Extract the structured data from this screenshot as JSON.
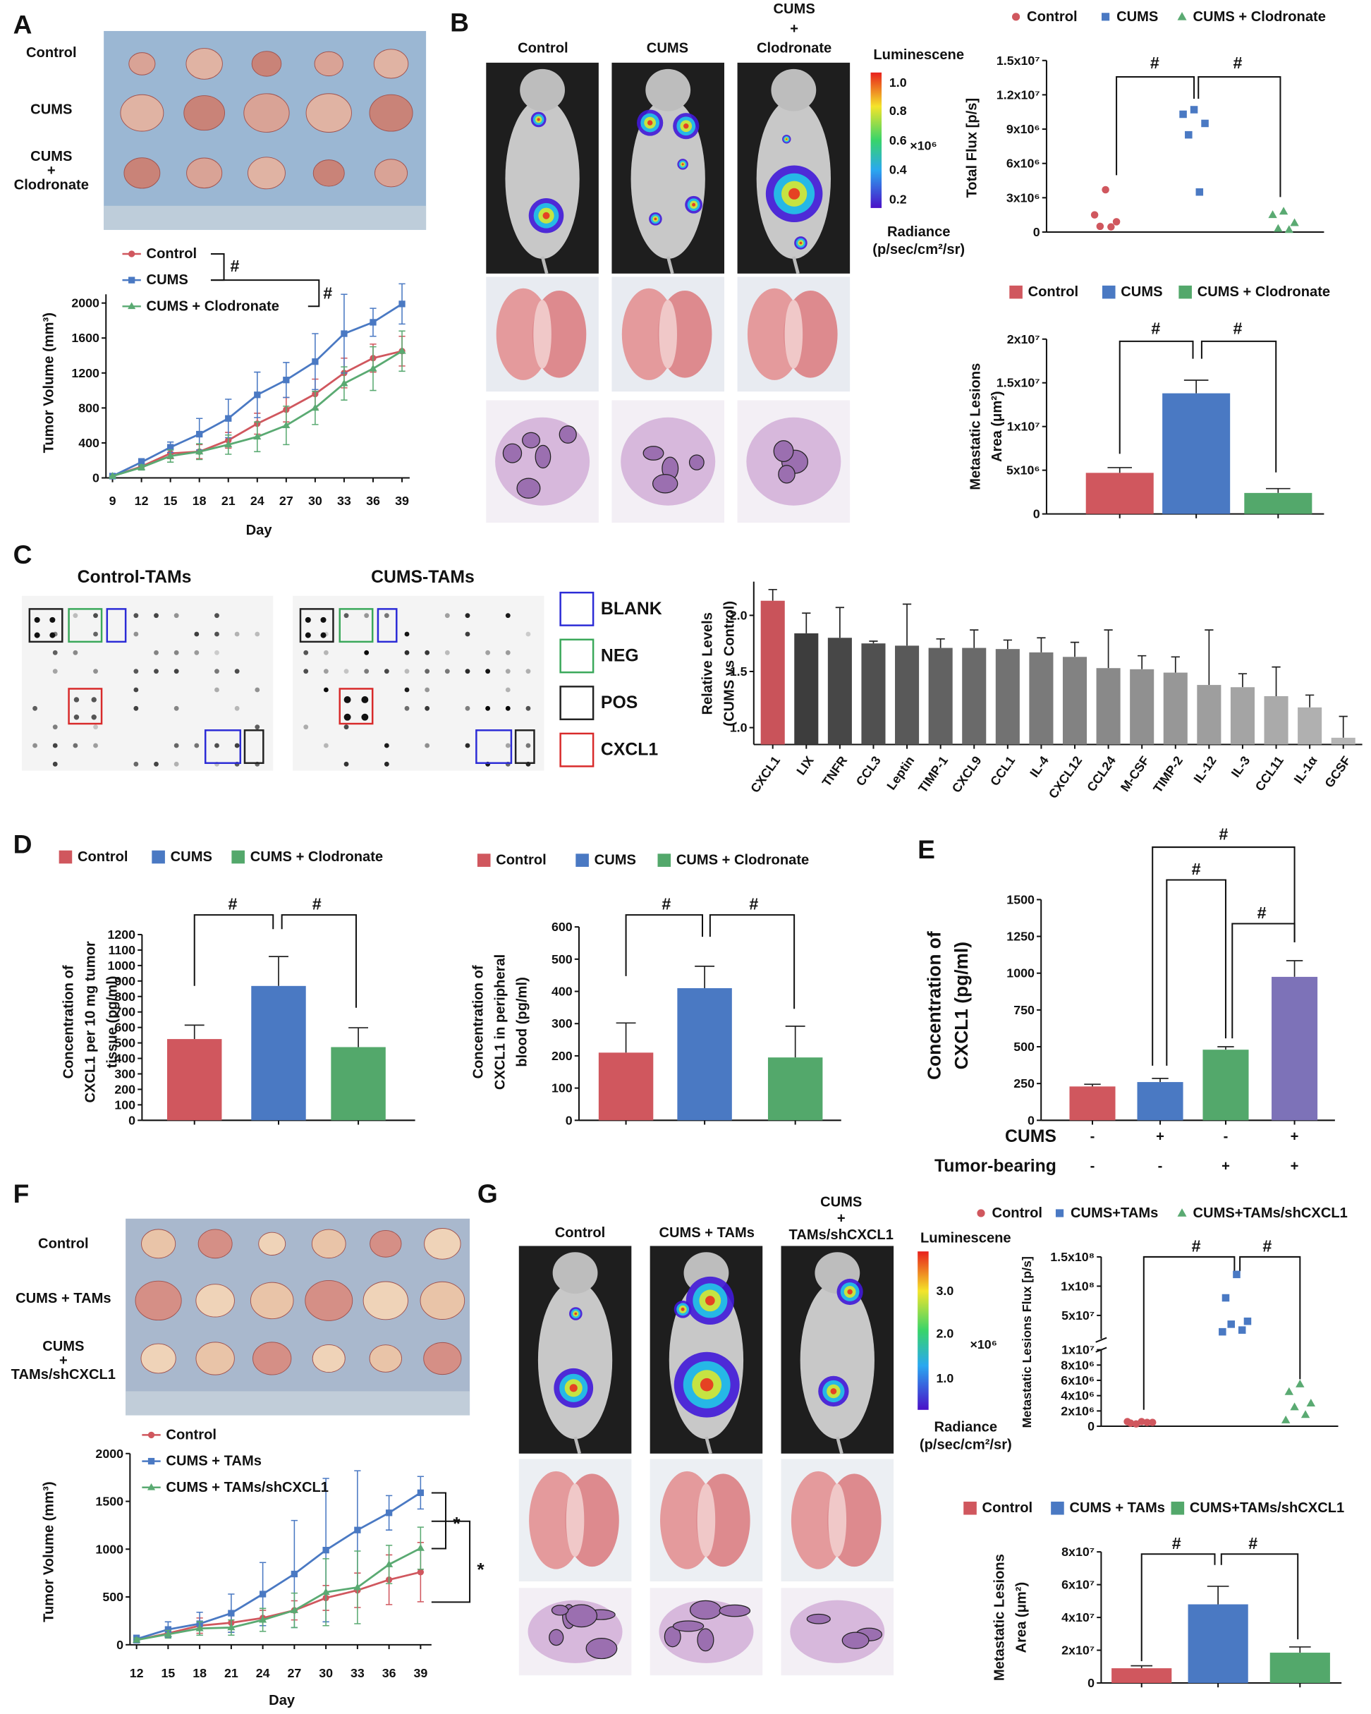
{
  "panel_letters": [
    "A",
    "B",
    "C",
    "D",
    "E",
    "F",
    "G"
  ],
  "A_photo_labels": [
    [
      "Control"
    ],
    [
      "CUMS"
    ],
    [
      "CUMS",
      "+",
      "Clodronate"
    ]
  ],
  "B_image_labels": [
    [
      "Control"
    ],
    [
      "CUMS"
    ],
    [
      "CUMS",
      "+",
      "Clodronate"
    ]
  ],
  "B_colorbar": {
    "title": "Luminescene",
    "ticks": [
      "1.0",
      "0.8",
      "0.6",
      "0.4",
      "0.2"
    ],
    "unit": "×10⁶",
    "label": [
      "Radiance",
      "(p/sec/cm²/sr)"
    ]
  },
  "C_arrays": [
    "Control-TAMs",
    "CUMS-TAMs"
  ],
  "C_key": [
    "BLANK",
    "NEG",
    "POS",
    "CXCL1"
  ],
  "F_photo_labels": [
    [
      "Control"
    ],
    [
      "CUMS + TAMs"
    ],
    [
      "CUMS",
      "+",
      "TAMs/shCXCL1"
    ]
  ],
  "G_image_labels": [
    [
      "Control"
    ],
    [
      "CUMS + TAMs"
    ],
    [
      "CUMS",
      "+",
      "TAMs/shCXCL1"
    ]
  ],
  "G_colorbar": {
    "title": "Luminescene",
    "ticks": [
      "3.0",
      "2.0",
      "1.0"
    ],
    "unit": "×10⁶",
    "label": [
      "Radiance",
      "(p/sec/cm²/sr)"
    ]
  },
  "chart_data": [
    {
      "type": "line",
      "x": [
        9,
        12,
        15,
        18,
        21,
        24,
        27,
        30,
        33,
        36,
        39
      ],
      "xlim": [
        9,
        39
      ],
      "xticks": [
        9,
        12,
        15,
        18,
        21,
        24,
        27,
        30,
        33,
        36,
        39
      ],
      "ylim": [
        0,
        2100
      ],
      "yticks": [
        0,
        400,
        800,
        1200,
        1600,
        2000
      ],
      "xlabel": "Day",
      "ylabel": [
        "Tumor Volume (mm³)"
      ],
      "series": [
        {
          "name": "Control",
          "color": "#d0575e",
          "marker": "circle",
          "values": [
            20,
            130,
            280,
            300,
            430,
            620,
            780,
            960,
            1200,
            1370,
            1450
          ],
          "errors": [
            0,
            30,
            60,
            80,
            90,
            120,
            140,
            170,
            170,
            160,
            170
          ]
        },
        {
          "name": "CUMS",
          "color": "#4a79c3",
          "marker": "square",
          "values": [
            20,
            180,
            350,
            500,
            680,
            950,
            1120,
            1330,
            1650,
            1780,
            1990
          ],
          "errors": [
            0,
            40,
            60,
            180,
            220,
            260,
            200,
            320,
            450,
            160,
            230
          ]
        },
        {
          "name": "CUMS + Clodronate",
          "color": "#5aaa72",
          "marker": "triangle",
          "values": [
            20,
            120,
            250,
            300,
            380,
            470,
            600,
            800,
            1080,
            1250,
            1450
          ],
          "errors": [
            0,
            30,
            70,
            90,
            110,
            170,
            220,
            190,
            190,
            250,
            230
          ]
        }
      ],
      "annotations": [
        "#",
        "#"
      ]
    },
    {
      "type": "dot",
      "ylim": [
        0,
        15000000
      ],
      "yticks": [
        0,
        {
          "value": 3000000,
          "label": "3x10⁶"
        },
        {
          "value": 6000000,
          "label": "6x10⁶"
        },
        {
          "value": 9000000,
          "label": "9x10⁶"
        },
        {
          "value": 12000000,
          "label": "1.2x10⁷"
        },
        {
          "value": 15000000,
          "label": "1.5x10⁷"
        }
      ],
      "ylabel": [
        "Total Flux [p/s]"
      ],
      "series": [
        {
          "name": "Control",
          "color": "#d0575e",
          "marker": "circle",
          "values": [
            3700000,
            1500000,
            900000,
            500000,
            450000
          ]
        },
        {
          "name": "CUMS",
          "color": "#4a79c3",
          "marker": "square",
          "values": [
            10700000,
            10300000,
            9500000,
            8500000,
            3500000
          ]
        },
        {
          "name": "CUMS + Clodronate",
          "color": "#5aaa72",
          "marker": "triangle",
          "values": [
            1800000,
            1500000,
            800000,
            300000,
            200000
          ]
        }
      ],
      "annotations": [
        "#",
        "#"
      ]
    },
    {
      "type": "bar",
      "legend": true,
      "categories": [
        "Control",
        "CUMS",
        "CUMS + Clodronate"
      ],
      "colors": [
        "#d0575e",
        "#4a79c3",
        "#53a86b"
      ],
      "values": [
        4700000,
        13800000,
        2400000
      ],
      "errors": [
        600000,
        1500000,
        500000
      ],
      "ylim": [
        0,
        20000000
      ],
      "yticks": [
        0,
        {
          "value": 5000000,
          "label": "5x10⁶"
        },
        {
          "value": 10000000,
          "label": "1x10⁷"
        },
        {
          "value": 15000000,
          "label": "1.5x10⁷"
        },
        {
          "value": 20000000,
          "label": "2x10⁷"
        }
      ],
      "ylabel": [
        "Metastatic Lesions",
        "Area (μm²)"
      ],
      "annotations": [
        "#",
        "#"
      ]
    },
    {
      "type": "bar",
      "legend": false,
      "categories": [
        "CXCL1",
        "LIX",
        "TNFR",
        "CCL3",
        "Leptin",
        "TIMP-1",
        "CXCL9",
        "CCL1",
        "IL-4",
        "CXCL12",
        "CCL24",
        "M-CSF",
        "TIMP-2",
        "IL-12",
        "IL-3",
        "CCL11",
        "IL-1α",
        "GCSF"
      ],
      "values": [
        2.13,
        1.84,
        1.8,
        1.75,
        1.73,
        1.71,
        1.71,
        1.7,
        1.67,
        1.63,
        1.53,
        1.52,
        1.49,
        1.38,
        1.36,
        1.28,
        1.18,
        0.91
      ],
      "errors": [
        0.1,
        0.18,
        0.27,
        0.02,
        0.37,
        0.08,
        0.16,
        0.08,
        0.13,
        0.13,
        0.34,
        0.12,
        0.14,
        0.49,
        0.12,
        0.26,
        0.11,
        0.19
      ],
      "colors": [
        "#c9535a",
        "#3d3d3d",
        "#474747",
        "#505050",
        "#595959",
        "#626262",
        "#6a6a6a",
        "#727272",
        "#7a7a7a",
        "#828282",
        "#898989",
        "#909090",
        "#979797",
        "#9e9e9e",
        "#a4a4a4",
        "#aaaaaa",
        "#b0b0b0",
        "#b6b6b6"
      ],
      "ylim": [
        0.85,
        2.3
      ],
      "yticks": [
        {
          "value": 1,
          "label": "1.0"
        },
        {
          "value": 1.5,
          "label": "1.5"
        },
        {
          "value": 2,
          "label": "2.0"
        }
      ],
      "ylabel": [
        "Relative Levels",
        "(CUMS vs Control)"
      ]
    },
    {
      "type": "bar",
      "legend": true,
      "categories": [
        "Control",
        "CUMS",
        "CUMS + Clodronate"
      ],
      "colors": [
        "#d0575e",
        "#4a79c3",
        "#53a86b"
      ],
      "values": [
        525,
        868,
        473
      ],
      "errors": [
        90,
        190,
        125
      ],
      "ylim": [
        0,
        1200
      ],
      "yticks": [
        0,
        100,
        200,
        300,
        400,
        500,
        600,
        700,
        800,
        900,
        1000,
        1100,
        1200
      ],
      "ylabel": [
        "Concentration of",
        "CXCL1 per 10 mg tumor",
        "tissue (pg/ml)"
      ],
      "annotations": [
        "#",
        "#"
      ]
    },
    {
      "type": "bar",
      "legend": true,
      "categories": [
        "Control",
        "CUMS",
        "CUMS + Clodronate"
      ],
      "colors": [
        "#d0575e",
        "#4a79c3",
        "#53a86b"
      ],
      "values": [
        210,
        410,
        195
      ],
      "errors": [
        92,
        68,
        97
      ],
      "ylim": [
        0,
        600
      ],
      "yticks": [
        0,
        100,
        200,
        300,
        400,
        500,
        600
      ],
      "ylabel": [
        "Concentration of",
        "CXCL1 in peripheral",
        "blood (pg/ml)"
      ],
      "annotations": [
        "#",
        "#"
      ]
    },
    {
      "type": "bar",
      "legend": false,
      "colors": [
        "#d0575e",
        "#4a79c3",
        "#53a86b",
        "#7d72b8"
      ],
      "values": [
        230,
        260,
        480,
        975
      ],
      "errors": [
        15,
        25,
        20,
        110
      ],
      "ylim": [
        0,
        1500
      ],
      "yticks": [
        0,
        250,
        500,
        750,
        1000,
        1250,
        1500
      ],
      "ylabel": [
        "Concentration of",
        "CXCL1 (pg/ml)"
      ],
      "annotations": [
        "#",
        "#",
        "#"
      ],
      "conditions": [
        {
          "label": "CUMS",
          "signs": [
            "-",
            "+",
            "-",
            "+"
          ]
        },
        {
          "label": "Tumor-bearing",
          "signs": [
            "-",
            "-",
            "+",
            "+"
          ]
        }
      ]
    },
    {
      "type": "line",
      "x": [
        12,
        15,
        18,
        21,
        24,
        27,
        30,
        33,
        36,
        39
      ],
      "xlim": [
        12,
        39
      ],
      "xticks": [
        12,
        15,
        18,
        21,
        24,
        27,
        30,
        33,
        36,
        39
      ],
      "ylim": [
        0,
        2000
      ],
      "yticks": [
        0,
        500,
        1000,
        1500,
        2000
      ],
      "xlabel": "Day",
      "ylabel": [
        "Tumor Volume (mm³)"
      ],
      "series": [
        {
          "name": "Control",
          "color": "#d0575e",
          "marker": "circle",
          "values": [
            50,
            120,
            200,
            230,
            280,
            360,
            490,
            570,
            680,
            760
          ],
          "errors": [
            20,
            40,
            80,
            100,
            80,
            100,
            130,
            180,
            260,
            310
          ]
        },
        {
          "name": "CUMS + TAMs",
          "color": "#4a79c3",
          "marker": "square",
          "values": [
            60,
            160,
            220,
            330,
            530,
            740,
            990,
            1200,
            1380,
            1590
          ],
          "errors": [
            40,
            80,
            120,
            200,
            330,
            560,
            750,
            620,
            180,
            170
          ]
        },
        {
          "name": "CUMS + TAMs/shCXCL1",
          "color": "#5aaa72",
          "marker": "triangle",
          "values": [
            50,
            110,
            170,
            180,
            260,
            360,
            550,
            600,
            840,
            1010
          ],
          "errors": [
            20,
            40,
            70,
            80,
            120,
            180,
            350,
            380,
            200,
            220
          ]
        }
      ],
      "annotations": [
        "*",
        "*"
      ]
    },
    {
      "type": "dot",
      "ylims": [
        [
          0,
          10000000
        ],
        [
          10000000,
          150000000
        ]
      ],
      "yticks": [
        0,
        {
          "value": 2000000,
          "label": "2x10⁶"
        },
        {
          "value": 4000000,
          "label": "4x10⁶"
        },
        {
          "value": 6000000,
          "label": "6x10⁶"
        },
        {
          "value": 8000000,
          "label": "8x10⁶"
        },
        {
          "value": 10000000,
          "label": "1x10⁷"
        },
        {
          "value": 50000000,
          "label": "5x10⁷"
        },
        {
          "value": 100000000,
          "label": "1x10⁸"
        },
        {
          "value": 150000000,
          "label": "1.5x10⁸"
        }
      ],
      "ylabel": [
        "Metastatic Lesions Flux [p/s]"
      ],
      "series": [
        {
          "name": "Control",
          "color": "#d0575e",
          "marker": "circle",
          "values": [
            600000,
            400000,
            500000,
            300000,
            500000,
            600000
          ]
        },
        {
          "name": "CUMS+TAMs",
          "color": "#4a79c3",
          "marker": "square",
          "values": [
            120000000,
            80000000,
            40000000,
            35000000,
            25000000,
            22000000
          ]
        },
        {
          "name": "CUMS+TAMs/shCXCL1",
          "color": "#5aaa72",
          "marker": "triangle",
          "values": [
            5500000,
            4500000,
            3000000,
            2500000,
            1500000,
            800000
          ]
        }
      ],
      "annotations": [
        "#",
        "#"
      ]
    },
    {
      "type": "bar",
      "legend": true,
      "categories": [
        "Control",
        "CUMS + TAMs",
        "CUMS+TAMs/shCXCL1"
      ],
      "colors": [
        "#d0575e",
        "#4a79c3",
        "#53a86b"
      ],
      "values": [
        9000000,
        48000000,
        18500000
      ],
      "errors": [
        1500000,
        11000000,
        3500000
      ],
      "ylim": [
        0,
        80000000
      ],
      "yticks": [
        0,
        {
          "value": 20000000,
          "label": "2x10⁷"
        },
        {
          "value": 40000000,
          "label": "4x10⁷"
        },
        {
          "value": 60000000,
          "label": "6x10⁷"
        },
        {
          "value": 80000000,
          "label": "8x10⁷"
        }
      ],
      "ylabel": [
        "Metastatic Lesions",
        "Area (μm²)"
      ],
      "annotations": [
        "#",
        "#"
      ]
    }
  ]
}
